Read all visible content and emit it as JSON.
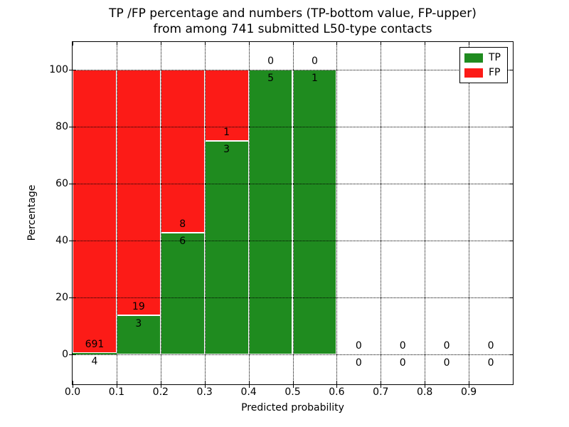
{
  "title": {
    "line1": "TP /FP percentage and numbers (TP-bottom value, FP-upper)",
    "line2": "from among 741 submitted L50-type contacts"
  },
  "axes": {
    "xlabel": "Predicted probability",
    "ylabel": "Percentage",
    "xticks": [
      "0.0",
      "0.1",
      "0.2",
      "0.3",
      "0.4",
      "0.5",
      "0.6",
      "0.7",
      "0.8",
      "0.9"
    ],
    "xtick_values": [
      0.0,
      0.1,
      0.2,
      0.3,
      0.4,
      0.5,
      0.6,
      0.7,
      0.8,
      0.9
    ],
    "yticks": [
      "0",
      "20",
      "40",
      "60",
      "80",
      "100"
    ],
    "ytick_values": [
      0,
      20,
      40,
      60,
      80,
      100
    ]
  },
  "legend": {
    "items": [
      {
        "label": "TP",
        "color": "#1f8b1f"
      },
      {
        "label": "FP",
        "color": "#fc1b17"
      }
    ]
  },
  "colors": {
    "tp": "#1f8b1f",
    "fp": "#fc1b17",
    "bar_edge": "#ffffff",
    "grid": "#000000"
  },
  "chart_data": {
    "type": "bar",
    "stacked": true,
    "title": "TP /FP percentage and numbers (TP-bottom value, FP-upper) from among 741 submitted L50-type contacts",
    "xlabel": "Predicted probability",
    "ylabel": "Percentage",
    "xlim": [
      0,
      1.0
    ],
    "ylim": [
      -10.5,
      109.75
    ],
    "grid": true,
    "legend_position": "upper right",
    "total_contacts": 741,
    "categories": [
      "0.0-0.1",
      "0.1-0.2",
      "0.2-0.3",
      "0.3-0.4",
      "0.4-0.5",
      "0.5-0.6",
      "0.6-0.7",
      "0.7-0.8",
      "0.8-0.9",
      "0.9-1.0"
    ],
    "series": [
      {
        "name": "TP",
        "color": "#1f8b1f",
        "values": [
          4,
          3,
          6,
          3,
          5,
          1,
          0,
          0,
          0,
          0
        ]
      },
      {
        "name": "FP",
        "color": "#fc1b17",
        "values": [
          691,
          19,
          8,
          1,
          0,
          0,
          0,
          0,
          0,
          0
        ]
      }
    ],
    "bins": [
      {
        "range": [
          0.0,
          0.1
        ],
        "tp": 4,
        "fp": 691,
        "tp_pct": 0.58,
        "fp_pct": 99.42
      },
      {
        "range": [
          0.1,
          0.2
        ],
        "tp": 3,
        "fp": 19,
        "tp_pct": 13.64,
        "fp_pct": 86.36
      },
      {
        "range": [
          0.2,
          0.3
        ],
        "tp": 6,
        "fp": 8,
        "tp_pct": 42.86,
        "fp_pct": 57.14
      },
      {
        "range": [
          0.3,
          0.4
        ],
        "tp": 3,
        "fp": 1,
        "tp_pct": 75.0,
        "fp_pct": 25.0
      },
      {
        "range": [
          0.4,
          0.5
        ],
        "tp": 5,
        "fp": 0,
        "tp_pct": 100.0,
        "fp_pct": 0.0
      },
      {
        "range": [
          0.5,
          0.6
        ],
        "tp": 1,
        "fp": 0,
        "tp_pct": 100.0,
        "fp_pct": 0.0
      },
      {
        "range": [
          0.6,
          0.7
        ],
        "tp": 0,
        "fp": 0,
        "tp_pct": 0.0,
        "fp_pct": 0.0
      },
      {
        "range": [
          0.7,
          0.8
        ],
        "tp": 0,
        "fp": 0,
        "tp_pct": 0.0,
        "fp_pct": 0.0
      },
      {
        "range": [
          0.8,
          0.9
        ],
        "tp": 0,
        "fp": 0,
        "tp_pct": 0.0,
        "fp_pct": 0.0
      },
      {
        "range": [
          0.9,
          1.0
        ],
        "tp": 0,
        "fp": 0,
        "tp_pct": 0.0,
        "fp_pct": 0.0
      }
    ]
  }
}
